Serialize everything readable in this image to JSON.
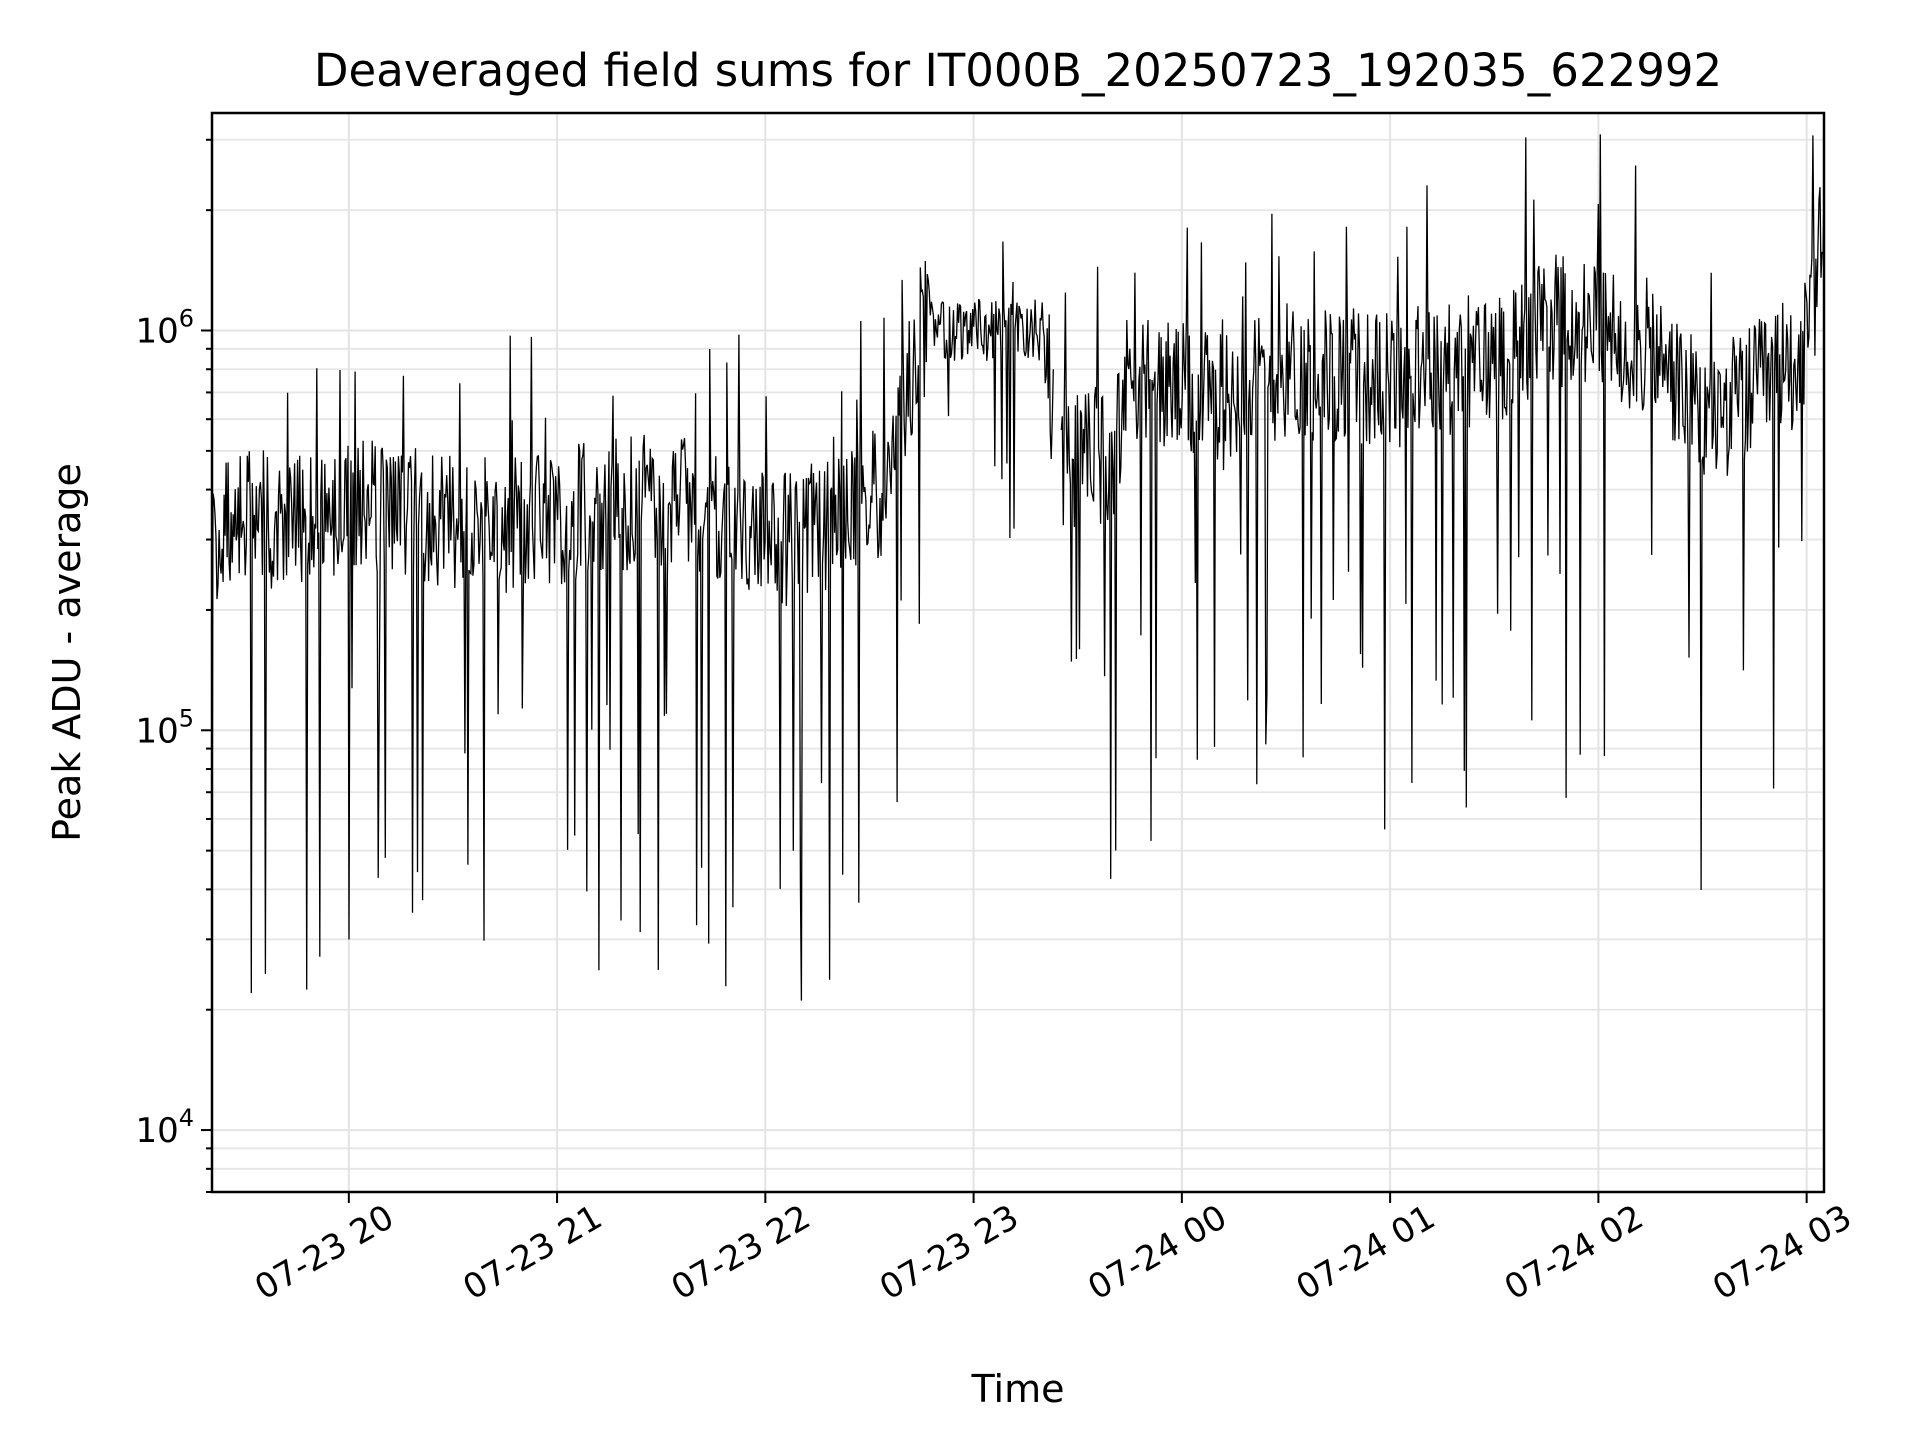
{
  "chart_data": {
    "type": "line",
    "title": "Deaveraged field sums for IT000B_20250723_192035_622992",
    "xlabel": "Time",
    "ylabel": "Peak ADU - average",
    "yscale": "log",
    "ylim": [
      7000,
      3500000
    ],
    "xlim": [
      "2025-07-23 19:20:35",
      "2025-07-24 03:05:00"
    ],
    "grid": true,
    "x_ticks": [
      {
        "value": "2025-07-23 20:00",
        "label": "07-23 20"
      },
      {
        "value": "2025-07-23 21:00",
        "label": "07-23 21"
      },
      {
        "value": "2025-07-23 22:00",
        "label": "07-23 22"
      },
      {
        "value": "2025-07-23 23:00",
        "label": "07-23 23"
      },
      {
        "value": "2025-07-24 00:00",
        "label": "07-24 00"
      },
      {
        "value": "2025-07-24 01:00",
        "label": "07-24 01"
      },
      {
        "value": "2025-07-24 02:00",
        "label": "07-24 02"
      },
      {
        "value": "2025-07-24 03:00",
        "label": "07-24 03"
      }
    ],
    "y_ticks": [
      {
        "value": 10000,
        "base": "10",
        "exp": "4"
      },
      {
        "value": 100000,
        "base": "10",
        "exp": "5"
      },
      {
        "value": 1000000,
        "base": "10",
        "exp": "6"
      }
    ],
    "series_color": "#000000",
    "series": [
      {
        "x": [
          "2025-07-23 19:20:35",
          "2025-07-23 19:30",
          "2025-07-23 19:40",
          "2025-07-23 19:50",
          "2025-07-23 20:00",
          "2025-07-23 20:15",
          "2025-07-23 20:30",
          "2025-07-23 20:45",
          "2025-07-23 21:00",
          "2025-07-23 21:15",
          "2025-07-23 21:30",
          "2025-07-23 21:45",
          "2025-07-23 22:00",
          "2025-07-23 22:20",
          "2025-07-23 22:35",
          "2025-07-23 22:45",
          "2025-07-23 23:00",
          "2025-07-23 23:15",
          "2025-07-23 23:20",
          "2025-07-23 23:25",
          "2025-07-23 23:40",
          "2025-07-23 23:45",
          "2025-07-24 00:00",
          "2025-07-24 00:10",
          "2025-07-24 00:15",
          "2025-07-24 00:30",
          "2025-07-24 01:00",
          "2025-07-24 01:30",
          "2025-07-24 01:45",
          "2025-07-24 02:00",
          "2025-07-24 02:15",
          "2025-07-24 02:30",
          "2025-07-24 02:45",
          "2025-07-24 03:00",
          "2025-07-24 03:05"
        ],
        "y": [
          300000,
          350000,
          330000,
          340000,
          360000,
          350000,
          330000,
          320000,
          340000,
          360000,
          370000,
          360000,
          300000,
          320000,
          400000,
          1000000,
          1000000,
          1000000,
          1000000,
          450000,
          500000,
          800000,
          700000,
          650000,
          700000,
          800000,
          750000,
          850000,
          1100000,
          1000000,
          900000,
          600000,
          700000,
          900000,
          1800000
        ]
      }
    ]
  }
}
